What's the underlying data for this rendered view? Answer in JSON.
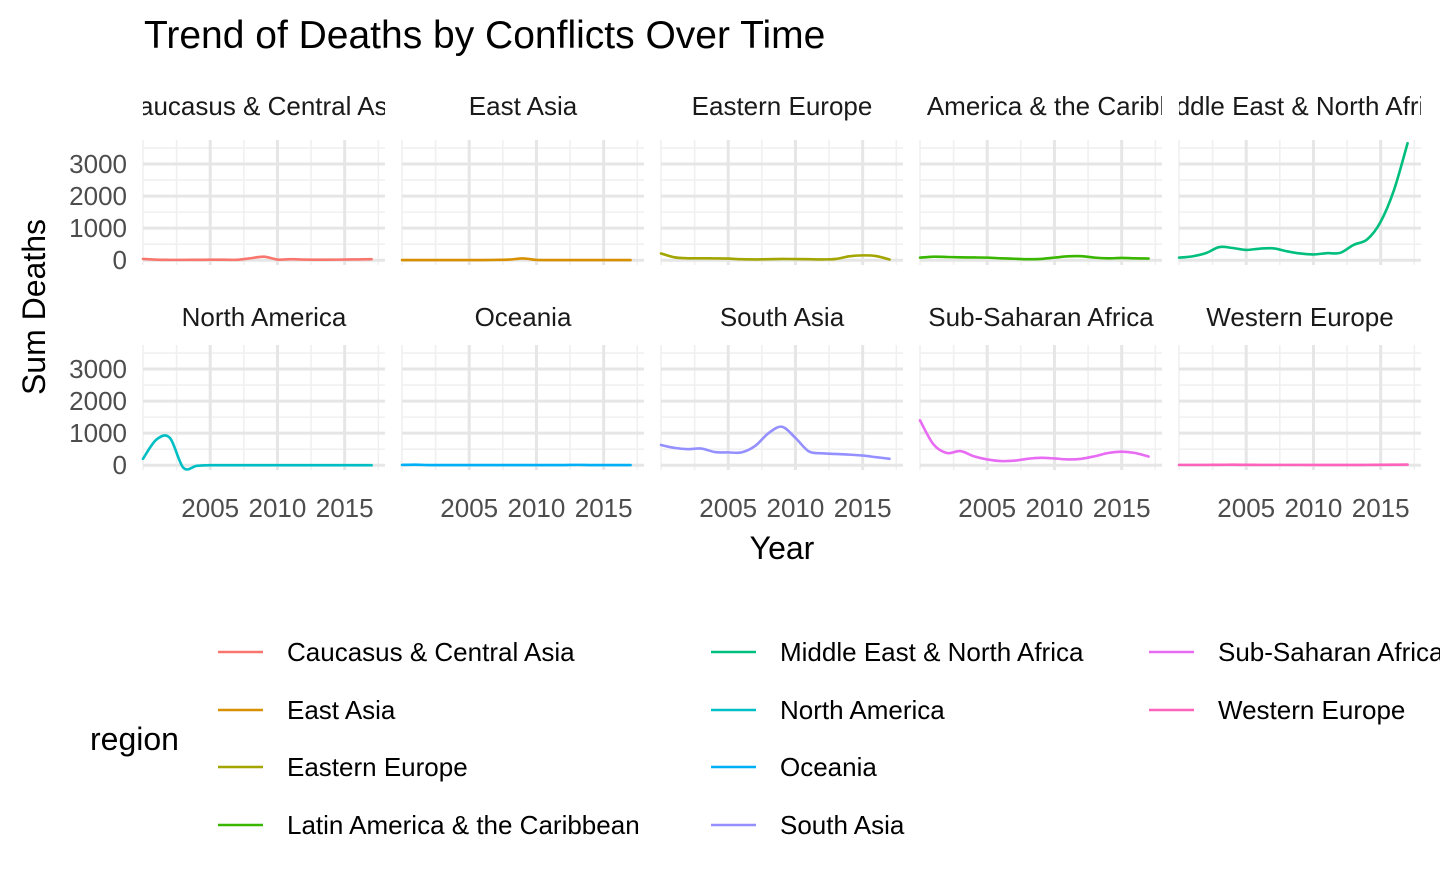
{
  "chart_data": {
    "type": "line",
    "title": "Trend of Deaths by Conflicts Over Time",
    "xlabel": "Year",
    "ylabel": "Sum Deaths",
    "xlim": [
      2000,
      2018
    ],
    "ylim": [
      -150,
      3750
    ],
    "x_ticks": [
      2005,
      2010,
      2015
    ],
    "y_ticks": [
      0,
      1000,
      2000,
      3000
    ],
    "grid": true,
    "legend_title": "region",
    "legend_position": "bottom",
    "x": [
      2000,
      2001,
      2002,
      2003,
      2004,
      2005,
      2006,
      2007,
      2008,
      2009,
      2010,
      2011,
      2012,
      2013,
      2014,
      2015,
      2016,
      2017
    ],
    "series": [
      {
        "name": "Caucasus & Central Asia",
        "facet_label": "Caucasus & Central Asia",
        "color": "#F8766D",
        "values": [
          40,
          15,
          10,
          10,
          12,
          15,
          15,
          12,
          60,
          110,
          20,
          30,
          20,
          15,
          15,
          20,
          25,
          30
        ]
      },
      {
        "name": "East Asia",
        "facet_label": "East Asia",
        "color": "#D89000",
        "values": [
          5,
          5,
          5,
          5,
          5,
          5,
          5,
          10,
          20,
          55,
          10,
          5,
          5,
          5,
          5,
          5,
          5,
          5
        ]
      },
      {
        "name": "Eastern Europe",
        "facet_label": "Eastern Europe",
        "color": "#A3A500",
        "values": [
          210,
          90,
          60,
          60,
          55,
          50,
          30,
          25,
          30,
          40,
          35,
          30,
          25,
          40,
          120,
          150,
          130,
          20
        ]
      },
      {
        "name": "Latin America & the Caribbean",
        "facet_label": "Latin America & the Caribbean",
        "color": "#39B600",
        "values": [
          80,
          110,
          100,
          90,
          85,
          80,
          60,
          45,
          30,
          40,
          80,
          120,
          125,
          80,
          60,
          70,
          60,
          50
        ]
      },
      {
        "name": "Middle East & North Africa",
        "facet_label": "Middle East & North Africa",
        "color": "#00BF7D",
        "values": [
          80,
          120,
          220,
          410,
          380,
          320,
          360,
          370,
          280,
          210,
          180,
          220,
          230,
          480,
          650,
          1200,
          2200,
          3650
        ]
      },
      {
        "name": "North America",
        "facet_label": "North America",
        "color": "#00BFC4",
        "values": [
          200,
          800,
          850,
          -80,
          -20,
          0,
          0,
          0,
          0,
          0,
          0,
          0,
          0,
          0,
          0,
          0,
          0,
          0
        ]
      },
      {
        "name": "Oceania",
        "facet_label": "Oceania",
        "color": "#00B0F6",
        "values": [
          10,
          15,
          5,
          5,
          5,
          5,
          5,
          5,
          5,
          5,
          5,
          5,
          5,
          10,
          5,
          5,
          5,
          5
        ]
      },
      {
        "name": "South Asia",
        "facet_label": "South Asia",
        "color": "#9590FF",
        "values": [
          630,
          540,
          500,
          520,
          410,
          400,
          400,
          600,
          1000,
          1200,
          850,
          430,
          370,
          350,
          330,
          300,
          250,
          200
        ]
      },
      {
        "name": "Sub-Saharan Africa",
        "facet_label": "Sub-Saharan Africa",
        "color": "#E76BF3",
        "values": [
          1400,
          650,
          380,
          440,
          280,
          180,
          130,
          140,
          200,
          230,
          210,
          180,
          200,
          280,
          380,
          420,
          380,
          270
        ]
      },
      {
        "name": "Western Europe",
        "facet_label": "Western Europe",
        "color": "#FF62BC",
        "values": [
          10,
          10,
          10,
          12,
          15,
          12,
          10,
          10,
          10,
          10,
          8,
          8,
          8,
          8,
          10,
          12,
          15,
          20
        ]
      }
    ]
  }
}
